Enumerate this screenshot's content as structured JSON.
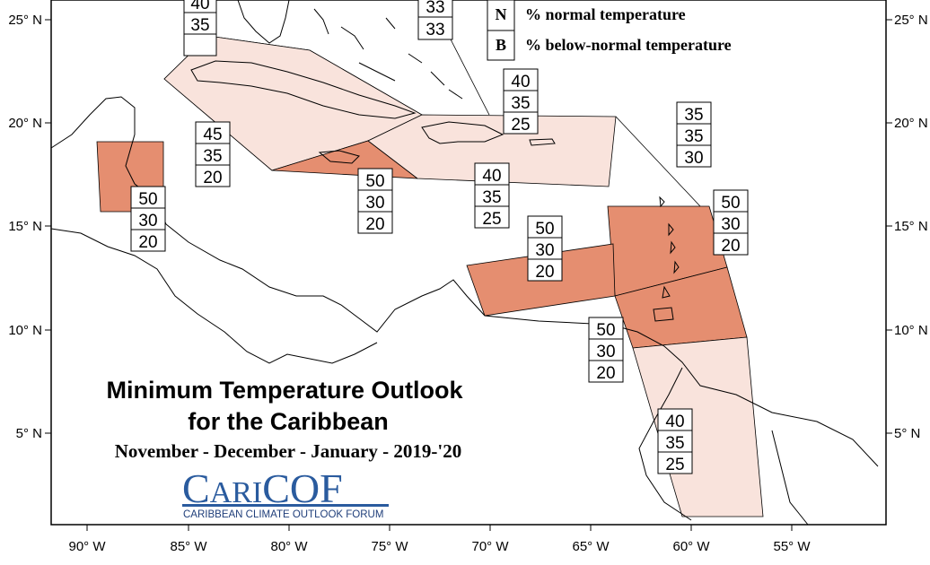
{
  "title": {
    "line1": "Minimum Temperature Outlook",
    "line2": "for the Caribbean",
    "period": "November - December - January - 2019-'20"
  },
  "logo": {
    "text_cari": "CARI",
    "text_cof": "COF",
    "tagline": "CARIBBEAN CLIMATE OUTLOOK FORUM"
  },
  "legend": [
    {
      "key": "N",
      "label": "% normal temperature"
    },
    {
      "key": "B",
      "label": "% below-normal temperature"
    }
  ],
  "axes": {
    "lon_labels": [
      "90° W",
      "85° W",
      "80° W",
      "75° W",
      "70° W",
      "65° W",
      "60° W",
      "55° W"
    ],
    "lat_labels": [
      "25° N",
      "20° N",
      "15° N",
      "10° N",
      "5° N"
    ]
  },
  "colors": {
    "light_zone": "#f9e3dc",
    "strong_zone": "#e58e70",
    "line": "#000000",
    "logo_blue": "#2a5b9e"
  },
  "regions": [
    {
      "id": "bahamas-top-left",
      "values": [
        "40",
        "35",
        ""
      ]
    },
    {
      "id": "bahamas-top",
      "values": [
        "33",
        "33",
        ""
      ]
    },
    {
      "id": "cuba",
      "values": [
        "45",
        "35",
        "20"
      ]
    },
    {
      "id": "belize",
      "values": [
        "50",
        "30",
        "20"
      ]
    },
    {
      "id": "jamaica",
      "values": [
        "50",
        "30",
        "20"
      ]
    },
    {
      "id": "hispaniola",
      "values": [
        "40",
        "35",
        "25"
      ]
    },
    {
      "id": "bahamas-turks",
      "values": [
        "40",
        "35",
        "25"
      ]
    },
    {
      "id": "leeward-north",
      "values": [
        "35",
        "35",
        "30"
      ]
    },
    {
      "id": "windward",
      "values": [
        "50",
        "30",
        "20"
      ]
    },
    {
      "id": "abc-islands",
      "values": [
        "50",
        "30",
        "20"
      ]
    },
    {
      "id": "trinidad",
      "values": [
        "50",
        "30",
        "20"
      ]
    },
    {
      "id": "guianas",
      "values": [
        "40",
        "35",
        "25"
      ]
    }
  ]
}
